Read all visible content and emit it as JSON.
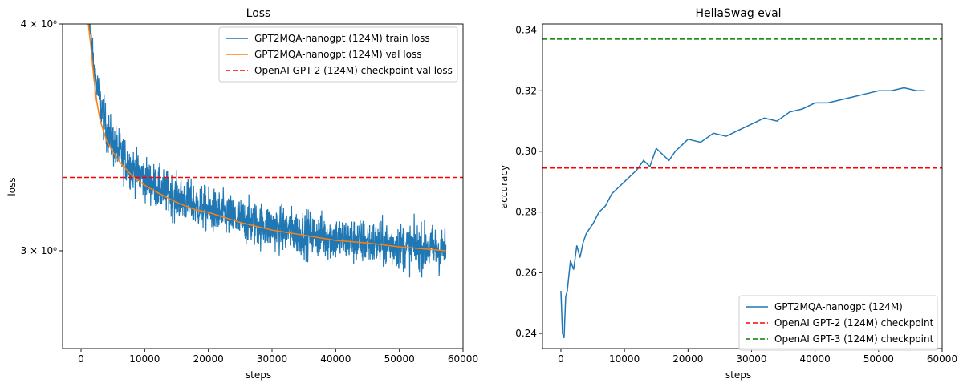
{
  "chart_data": [
    {
      "type": "line",
      "title": "Loss",
      "xlabel": "steps",
      "ylabel": "loss",
      "yscale": "log",
      "xlim": [
        -2900,
        60000
      ],
      "ylim": [
        2.65,
        4.0
      ],
      "xticks": [
        0,
        10000,
        20000,
        30000,
        40000,
        50000,
        60000
      ],
      "xtick_labels": [
        "0",
        "10000",
        "20000",
        "30000",
        "40000",
        "50000",
        "60000"
      ],
      "yticks": [
        3.0,
        4.0
      ],
      "ytick_labels": [
        "3 × 10⁰",
        "4 × 10⁰"
      ],
      "grid": false,
      "legend_position": "top-right",
      "series": [
        {
          "name": "GPT2MQA-nanogpt (124M) train loss",
          "color": "#1f77b4",
          "style": "noisy",
          "x": [
            800,
            1500,
            2000,
            3000,
            4000,
            5000,
            6000,
            8000,
            10000,
            12000,
            15000,
            18000,
            20000,
            25000,
            30000,
            35000,
            40000,
            45000,
            50000,
            55000,
            57300
          ],
          "center": [
            4.1,
            3.95,
            3.78,
            3.62,
            3.5,
            3.44,
            3.4,
            3.33,
            3.29,
            3.25,
            3.21,
            3.18,
            3.16,
            3.12,
            3.09,
            3.07,
            3.05,
            3.03,
            3.02,
            3.01,
            3.0
          ],
          "spread": [
            0.03,
            0.06,
            0.08,
            0.09,
            0.09,
            0.09,
            0.09,
            0.08,
            0.08,
            0.08,
            0.08,
            0.08,
            0.08,
            0.08,
            0.08,
            0.08,
            0.08,
            0.08,
            0.08,
            0.08,
            0.08
          ]
        },
        {
          "name": "GPT2MQA-nanogpt (124M) val loss",
          "color": "#ff7f0e",
          "style": "solid",
          "x": [
            800,
            1500,
            2000,
            2500,
            3000,
            4000,
            5000,
            6000,
            8000,
            10000,
            12000,
            15000,
            18000,
            20000,
            25000,
            30000,
            35000,
            40000,
            45000,
            50000,
            55000,
            57300
          ],
          "y": [
            4.1,
            3.9,
            3.74,
            3.62,
            3.54,
            3.45,
            3.4,
            3.36,
            3.3,
            3.26,
            3.23,
            3.19,
            3.16,
            3.15,
            3.11,
            3.08,
            3.06,
            3.04,
            3.03,
            3.015,
            3.005,
            3.0
          ]
        },
        {
          "name": "OpenAI GPT-2 (124M) checkpoint val loss",
          "color": "#ff0000",
          "style": "dashed",
          "y": 3.2924
        }
      ]
    },
    {
      "type": "line",
      "title": "HellaSwag eval",
      "xlabel": "steps",
      "ylabel": "accuracy",
      "xlim": [
        -2900,
        60000
      ],
      "ylim": [
        0.235,
        0.342
      ],
      "xticks": [
        0,
        10000,
        20000,
        30000,
        40000,
        50000,
        60000
      ],
      "xtick_labels": [
        "0",
        "10000",
        "20000",
        "30000",
        "40000",
        "50000",
        "60000"
      ],
      "yticks": [
        0.24,
        0.26,
        0.28,
        0.3,
        0.32,
        0.34
      ],
      "ytick_labels": [
        "0.24",
        "0.26",
        "0.28",
        "0.30",
        "0.32",
        "0.34"
      ],
      "grid": false,
      "legend_position": "bottom-right",
      "series": [
        {
          "name": "GPT2MQA-nanogpt (124M)",
          "color": "#1f77b4",
          "style": "solid",
          "x": [
            0,
            250,
            500,
            750,
            1000,
            1500,
            2000,
            2500,
            3000,
            3500,
            4000,
            5000,
            6000,
            7000,
            8000,
            9000,
            10000,
            11000,
            12000,
            13000,
            14000,
            15000,
            16000,
            17000,
            18000,
            19000,
            20000,
            22000,
            24000,
            26000,
            28000,
            30000,
            32000,
            34000,
            36000,
            38000,
            40000,
            42000,
            44000,
            46000,
            48000,
            50000,
            52000,
            54000,
            56000,
            57300
          ],
          "y": [
            0.254,
            0.24,
            0.2385,
            0.252,
            0.254,
            0.264,
            0.261,
            0.269,
            0.265,
            0.27,
            0.273,
            0.276,
            0.28,
            0.282,
            0.286,
            0.288,
            0.29,
            0.292,
            0.294,
            0.297,
            0.295,
            0.301,
            0.299,
            0.297,
            0.3,
            0.302,
            0.304,
            0.303,
            0.306,
            0.305,
            0.307,
            0.309,
            0.311,
            0.31,
            0.313,
            0.314,
            0.316,
            0.316,
            0.317,
            0.318,
            0.319,
            0.32,
            0.32,
            0.321,
            0.32,
            0.32
          ]
        },
        {
          "name": "OpenAI GPT-2 (124M) checkpoint",
          "color": "#ff0000",
          "style": "dashed",
          "y": 0.2945
        },
        {
          "name": "OpenAI GPT-3 (124M) checkpoint",
          "color": "#008000",
          "style": "dashed",
          "y": 0.337
        }
      ]
    }
  ]
}
